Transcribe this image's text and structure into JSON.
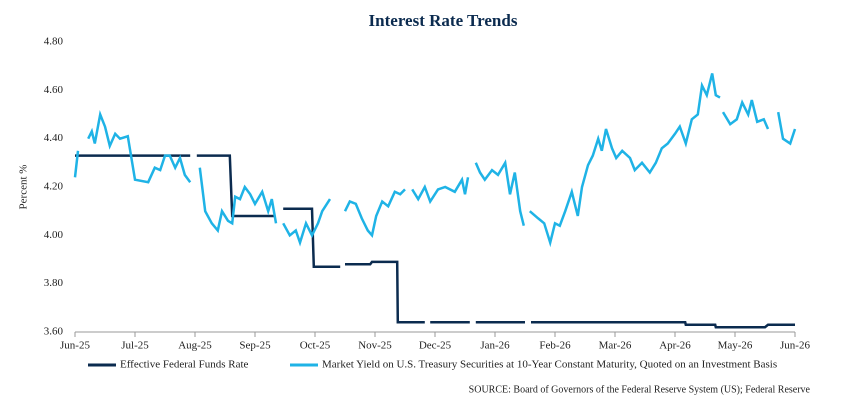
{
  "chart_data": {
    "type": "line",
    "title": "Interest Rate Trends",
    "y_label": "Percent %",
    "source": "SOURCE:  Board of Governors of the Federal Reserve System (US); Federal Reserve",
    "xlim": [
      0,
      12
    ],
    "ylim": [
      3.6,
      4.8
    ],
    "xticks": [
      {
        "value": 0,
        "label": "Jun-25"
      },
      {
        "value": 1,
        "label": "Jul-25"
      },
      {
        "value": 2,
        "label": "Aug-25"
      },
      {
        "value": 3,
        "label": "Sep-25"
      },
      {
        "value": 4,
        "label": "Oct-25"
      },
      {
        "value": 5,
        "label": "Nov-25"
      },
      {
        "value": 6,
        "label": "Dec-25"
      },
      {
        "value": 7,
        "label": "Jan-26"
      },
      {
        "value": 8,
        "label": "Feb-26"
      },
      {
        "value": 9,
        "label": "Mar-26"
      },
      {
        "value": 10,
        "label": "Apr-26"
      },
      {
        "value": 11,
        "label": "May-26"
      },
      {
        "value": 12,
        "label": "Jun-26"
      }
    ],
    "yticks": [
      {
        "value": 3.6,
        "label": "3.60"
      },
      {
        "value": 3.8,
        "label": "3.80"
      },
      {
        "value": 4.0,
        "label": "4.00"
      },
      {
        "value": 4.2,
        "label": "4.20"
      },
      {
        "value": 4.4,
        "label": "4.40"
      },
      {
        "value": 4.6,
        "label": "4.60"
      },
      {
        "value": 4.8,
        "label": "4.80"
      }
    ],
    "grid": false,
    "series": [
      {
        "name": "Effective Federal Funds Rate",
        "color": "#0b2b4f",
        "x": [
          0,
          1.92,
          null,
          2.03,
          2.58,
          2.62,
          3.33,
          null,
          3.47,
          3.95,
          3.98,
          4.42,
          null,
          4.5,
          4.92,
          4.95,
          5.37,
          5.38,
          5.83,
          null,
          5.92,
          6.58,
          null,
          6.68,
          7.5,
          null,
          7.6,
          10.17,
          10.18,
          10.67,
          10.68,
          11.5,
          11.55,
          12
        ],
        "values": [
          4.33,
          4.33,
          null,
          4.33,
          4.33,
          4.08,
          4.08,
          null,
          4.11,
          4.11,
          3.87,
          3.87,
          null,
          3.88,
          3.88,
          3.89,
          3.89,
          3.64,
          3.64,
          null,
          3.64,
          3.64,
          null,
          3.64,
          3.64,
          null,
          3.64,
          3.64,
          3.63,
          3.63,
          3.62,
          3.62,
          3.63,
          3.63
        ]
      },
      {
        "name": "Market Yield on U.S. Treasury Securities at 10-Year Constant Maturity, Quoted on an Investment Basis",
        "color": "#1fb3e6",
        "x": [
          0,
          0.05,
          null,
          0.22,
          0.28,
          0.33,
          0.42,
          0.5,
          0.58,
          0.67,
          0.75,
          0.88,
          1.0,
          1.22,
          1.33,
          1.42,
          1.5,
          1.58,
          1.67,
          1.75,
          1.83,
          1.92,
          null,
          2.08,
          2.17,
          2.28,
          2.38,
          2.45,
          2.55,
          2.62,
          2.67,
          2.75,
          2.83,
          2.92,
          3.0,
          3.12,
          3.22,
          3.28,
          3.35,
          null,
          3.47,
          3.58,
          3.68,
          3.75,
          3.85,
          3.95,
          4.05,
          4.12,
          4.25,
          null,
          4.5,
          4.58,
          4.68,
          4.78,
          4.88,
          4.95,
          5.02,
          5.12,
          5.22,
          5.33,
          5.42,
          5.5,
          null,
          5.62,
          5.72,
          5.83,
          5.92,
          6.05,
          6.17,
          6.33,
          6.45,
          6.5,
          6.55,
          null,
          6.68,
          6.75,
          6.83,
          6.95,
          7.05,
          7.17,
          7.25,
          7.33,
          7.42,
          7.48,
          null,
          7.58,
          7.72,
          7.82,
          7.92,
          8.0,
          8.08,
          8.17,
          8.28,
          8.38,
          8.45,
          8.55,
          8.63,
          8.72,
          8.78,
          8.85,
          8.95,
          9.02,
          9.12,
          9.25,
          9.33,
          9.45,
          9.58,
          9.68,
          9.78,
          9.88,
          10.0,
          10.08,
          10.18,
          10.28,
          10.38,
          10.45,
          10.53,
          10.62,
          10.68,
          10.75,
          null,
          10.8,
          10.92,
          11.03,
          11.12,
          11.22,
          11.28,
          11.37,
          11.48,
          11.55,
          null,
          11.72,
          11.8,
          11.92,
          12
        ],
        "values": [
          4.24,
          4.35,
          null,
          4.4,
          4.43,
          4.38,
          4.5,
          4.45,
          4.37,
          4.42,
          4.4,
          4.41,
          4.23,
          4.22,
          4.28,
          4.27,
          4.33,
          4.33,
          4.28,
          4.32,
          4.25,
          4.22,
          null,
          4.28,
          4.1,
          4.05,
          4.02,
          4.1,
          4.06,
          4.05,
          4.16,
          4.15,
          4.2,
          4.17,
          4.13,
          4.18,
          4.1,
          4.15,
          4.05,
          null,
          4.05,
          4.0,
          4.02,
          3.97,
          4.05,
          4.0,
          4.05,
          4.1,
          4.15,
          null,
          4.1,
          4.14,
          4.13,
          4.07,
          4.02,
          4.0,
          4.08,
          4.14,
          4.12,
          4.18,
          4.17,
          4.19,
          null,
          4.19,
          4.15,
          4.2,
          4.14,
          4.19,
          4.2,
          4.18,
          4.23,
          4.17,
          4.24,
          null,
          4.3,
          4.26,
          4.23,
          4.27,
          4.25,
          4.3,
          4.17,
          4.26,
          4.1,
          4.04,
          null,
          4.1,
          4.07,
          4.05,
          3.97,
          4.05,
          4.04,
          4.1,
          4.18,
          4.08,
          4.2,
          4.29,
          4.33,
          4.4,
          4.35,
          4.44,
          4.36,
          4.32,
          4.35,
          4.32,
          4.27,
          4.3,
          4.26,
          4.3,
          4.36,
          4.38,
          4.42,
          4.45,
          4.38,
          4.48,
          4.5,
          4.62,
          4.58,
          4.67,
          4.58,
          4.57,
          null,
          4.51,
          4.46,
          4.48,
          4.55,
          4.5,
          4.56,
          4.47,
          4.48,
          4.44,
          null,
          4.51,
          4.4,
          4.38,
          4.44
        ]
      }
    ]
  }
}
